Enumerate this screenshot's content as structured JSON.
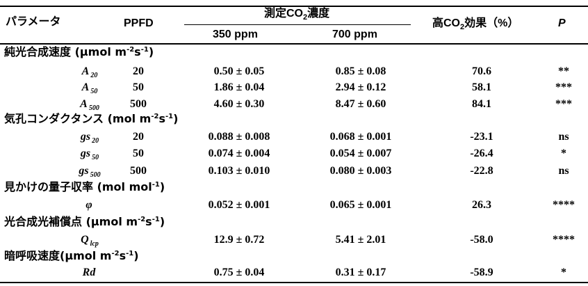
{
  "header": {
    "parameter": "パラメータ",
    "ppfd": "PPFD",
    "measured_pre": "測定CO",
    "measured_sub": "2",
    "measured_post": "濃度",
    "col_350": "350 ppm",
    "col_700": "700 ppm",
    "effect_pre": "高CO",
    "effect_sub": "2",
    "effect_post": "効果（%）",
    "p": "P"
  },
  "sections": [
    {
      "title": "純光合成速度 (µmol m",
      "unit_sup1": "-2",
      "unit_mid": "s",
      "unit_sup2": "-1",
      "unit_end": ")",
      "rows": [
        {
          "sym": "A",
          "sub": "20",
          "ppfd": "20",
          "v350": "0.50 ± 0.05",
          "v700": "0.85 ± 0.08",
          "effect": "70.6",
          "p": "**"
        },
        {
          "sym": "A",
          "sub": "50",
          "ppfd": "50",
          "v350": "1.86 ± 0.04",
          "v700": "2.94 ± 0.12",
          "effect": "58.1",
          "p": "***"
        },
        {
          "sym": "A",
          "sub": "500",
          "ppfd": "500",
          "v350": "4.60 ± 0.30",
          "v700": "8.47 ± 0.60",
          "effect": "84.1",
          "p": "***"
        }
      ]
    },
    {
      "title": "気孔コンダクタンス (mol m",
      "unit_sup1": "-2",
      "unit_mid": "s",
      "unit_sup2": "-1",
      "unit_end": ")",
      "rows": [
        {
          "sym": "gs",
          "sub": "20",
          "ppfd": "20",
          "v350": "0.088 ± 0.008",
          "v700": "0.068 ± 0.001",
          "effect": "-23.1",
          "p": "ns"
        },
        {
          "sym": "gs",
          "sub": "50",
          "ppfd": "50",
          "v350": "0.074 ± 0.004",
          "v700": "0.054 ± 0.007",
          "effect": "-26.4",
          "p": "*"
        },
        {
          "sym": "gs",
          "sub": "500",
          "ppfd": "500",
          "v350": "0.103 ± 0.010",
          "v700": "0.080 ± 0.003",
          "effect": "-22.8",
          "p": "ns"
        }
      ]
    },
    {
      "title": "見かけの量子収率 (mol mol",
      "unit_sup1": "-1",
      "unit_mid": "",
      "unit_sup2": "",
      "unit_end": ")",
      "rows": [
        {
          "sym": "φ",
          "sub": "",
          "ppfd": "",
          "v350": "0.052 ± 0.001",
          "v700": "0.065 ± 0.001",
          "effect": "26.3",
          "p": "****"
        }
      ]
    },
    {
      "title": "光合成光補償点 (µmol m",
      "unit_sup1": "-2",
      "unit_mid": "s",
      "unit_sup2": "-1",
      "unit_end": ")",
      "rows": [
        {
          "sym": "Q",
          "sub": "lcp",
          "ppfd": "",
          "v350": "12.9 ± 0.72",
          "v700": "5.41 ± 2.01",
          "effect": "-58.0",
          "p": "****"
        }
      ]
    },
    {
      "title": "暗呼吸速度(µmol m",
      "unit_sup1": "-2",
      "unit_mid": "s",
      "unit_sup2": "-1",
      "unit_end": ")",
      "rows": [
        {
          "sym": "Rd",
          "sub": "",
          "ppfd": "",
          "v350": "0.75 ± 0.04",
          "v700": "0.31 ± 0.17",
          "effect": "-58.9",
          "p": "*"
        }
      ]
    }
  ]
}
